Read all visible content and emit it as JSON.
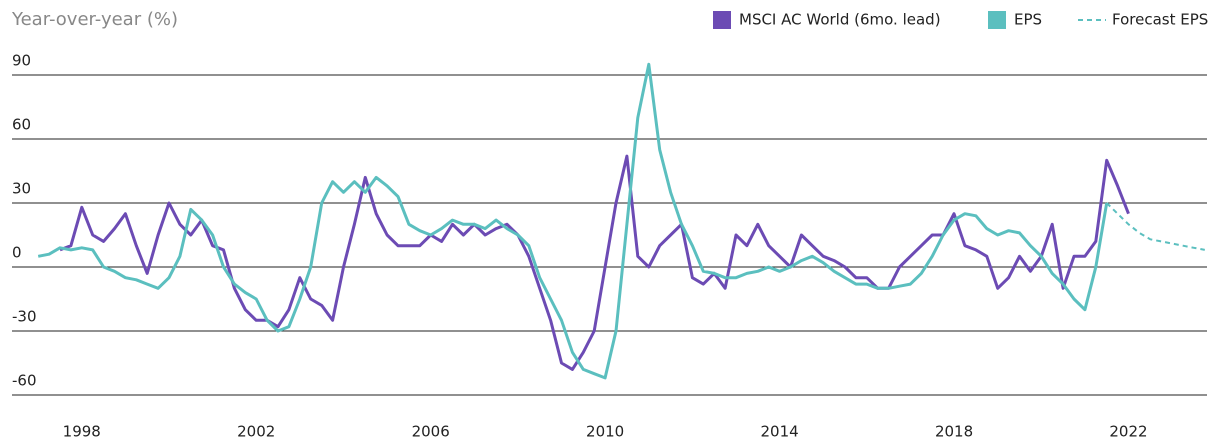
{
  "chart_data": {
    "type": "line",
    "title": "Year-over-year (%)",
    "x": [
      1997,
      1997.25,
      1997.5,
      1997.75,
      1998,
      1998.25,
      1998.5,
      1998.75,
      1999,
      1999.25,
      1999.5,
      1999.75,
      2000,
      2000.25,
      2000.5,
      2000.75,
      2001,
      2001.25,
      2001.5,
      2001.75,
      2002,
      2002.25,
      2002.5,
      2002.75,
      2003,
      2003.25,
      2003.5,
      2003.75,
      2004,
      2004.25,
      2004.5,
      2004.75,
      2005,
      2005.25,
      2005.5,
      2005.75,
      2006,
      2006.25,
      2006.5,
      2006.75,
      2007,
      2007.25,
      2007.5,
      2007.75,
      2008,
      2008.25,
      2008.5,
      2008.75,
      2009,
      2009.25,
      2009.5,
      2009.75,
      2010,
      2010.25,
      2010.5,
      2010.75,
      2011,
      2011.25,
      2011.5,
      2011.75,
      2012,
      2012.25,
      2012.5,
      2012.75,
      2013,
      2013.25,
      2013.5,
      2013.75,
      2014,
      2014.25,
      2014.5,
      2014.75,
      2015,
      2015.25,
      2015.5,
      2015.75,
      2016,
      2016.25,
      2016.5,
      2016.75,
      2017,
      2017.25,
      2017.5,
      2017.75,
      2018,
      2018.25,
      2018.5,
      2018.75,
      2019,
      2019.25,
      2019.5,
      2019.75,
      2020,
      2020.25,
      2020.5,
      2020.75,
      2021,
      2021.25,
      2021.5,
      2021.75,
      2022,
      2022.25,
      2022.5,
      2022.75,
      2023,
      2023.25,
      2023.5,
      2023.75
    ],
    "series": [
      {
        "name": "MSCI AC World (6mo. lead)",
        "color": "#6c4bb4",
        "dashed": false,
        "values": [
          null,
          null,
          8,
          10,
          28,
          15,
          12,
          18,
          25,
          10,
          -3,
          15,
          30,
          20,
          15,
          22,
          10,
          8,
          -10,
          -20,
          -25,
          -25,
          -28,
          -20,
          -5,
          -15,
          -18,
          -25,
          0,
          20,
          42,
          25,
          15,
          10,
          10,
          10,
          15,
          12,
          20,
          15,
          20,
          15,
          18,
          20,
          15,
          5,
          -10,
          -25,
          -45,
          -48,
          -40,
          -30,
          0,
          30,
          52,
          5,
          0,
          10,
          15,
          20,
          -5,
          -8,
          -3,
          -10,
          15,
          10,
          20,
          10,
          5,
          0,
          15,
          10,
          5,
          3,
          0,
          -5,
          -5,
          -10,
          -10,
          0,
          5,
          10,
          15,
          15,
          25,
          10,
          8,
          5,
          -10,
          -5,
          5,
          -2,
          5,
          20,
          -10,
          5,
          5,
          12,
          50,
          38,
          25,
          null,
          null,
          null,
          null,
          null,
          null,
          null
        ]
      },
      {
        "name": "EPS",
        "color": "#5bbfbf",
        "dashed": false,
        "values": [
          5,
          6,
          9,
          8,
          9,
          8,
          0,
          -2,
          -5,
          -6,
          -8,
          -10,
          -5,
          5,
          27,
          22,
          15,
          0,
          -8,
          -12,
          -15,
          -25,
          -30,
          -28,
          -15,
          0,
          30,
          40,
          35,
          40,
          35,
          42,
          38,
          33,
          20,
          17,
          15,
          18,
          22,
          20,
          20,
          18,
          22,
          18,
          15,
          10,
          -5,
          -15,
          -25,
          -40,
          -48,
          -50,
          -52,
          -30,
          20,
          70,
          95,
          55,
          35,
          20,
          10,
          -2,
          -3,
          -5,
          -5,
          -3,
          -2,
          0,
          -2,
          0,
          3,
          5,
          2,
          -2,
          -5,
          -8,
          -8,
          -10,
          -10,
          -9,
          -8,
          -3,
          5,
          15,
          22,
          25,
          24,
          18,
          15,
          17,
          16,
          10,
          5,
          -3,
          -8,
          -15,
          -20,
          0,
          30,
          null,
          null,
          null,
          null,
          null,
          null,
          null,
          null,
          null
        ]
      },
      {
        "name": "Forecast EPS",
        "color": "#5bbfbf",
        "dashed": true,
        "values": [
          null,
          null,
          null,
          null,
          null,
          null,
          null,
          null,
          null,
          null,
          null,
          null,
          null,
          null,
          null,
          null,
          null,
          null,
          null,
          null,
          null,
          null,
          null,
          null,
          null,
          null,
          null,
          null,
          null,
          null,
          null,
          null,
          null,
          null,
          null,
          null,
          null,
          null,
          null,
          null,
          null,
          null,
          null,
          null,
          null,
          null,
          null,
          null,
          null,
          null,
          null,
          null,
          null,
          null,
          null,
          null,
          null,
          null,
          null,
          null,
          null,
          null,
          null,
          null,
          null,
          null,
          null,
          null,
          null,
          null,
          null,
          null,
          null,
          null,
          null,
          null,
          null,
          null,
          null,
          null,
          null,
          null,
          null,
          null,
          null,
          null,
          null,
          null,
          null,
          null,
          null,
          null,
          null,
          null,
          null,
          null,
          null,
          null,
          30,
          25,
          20,
          16,
          13,
          12,
          11,
          10,
          9,
          8
        ]
      }
    ],
    "xlim": [
      1996.4,
      2023.8
    ],
    "xticks": [
      1998,
      2002,
      2006,
      2010,
      2014,
      2018,
      2022
    ],
    "ylim": [
      -60,
      90
    ],
    "yticks": [
      90,
      60,
      30,
      0,
      -30,
      -60
    ],
    "grid": true
  }
}
